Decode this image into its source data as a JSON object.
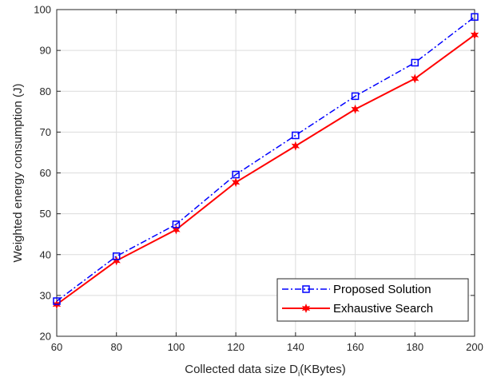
{
  "chart_data": {
    "type": "line",
    "title": "",
    "xlabel_main": "Collected data size D",
    "xlabel_sub": "i",
    "xlabel_unit": "(KBytes)",
    "ylabel": "Weighted energy consumption (J)",
    "xlim": [
      60,
      200
    ],
    "ylim": [
      20,
      100
    ],
    "xticks": [
      60,
      80,
      100,
      120,
      140,
      160,
      180,
      200
    ],
    "yticks": [
      20,
      30,
      40,
      50,
      60,
      70,
      80,
      90,
      100
    ],
    "grid": true,
    "legend_position": "bottom-right",
    "x": [
      60,
      80,
      100,
      120,
      140,
      160,
      180,
      200
    ],
    "series": [
      {
        "name": "Proposed Solution",
        "values": [
          28.6,
          39.6,
          47.4,
          59.6,
          69.2,
          78.8,
          87.0,
          98.2
        ],
        "color": "#0000ff",
        "line_style": "dash-dot",
        "marker": "square"
      },
      {
        "name": "Exhaustive Search",
        "values": [
          27.8,
          38.5,
          46.1,
          57.7,
          66.6,
          75.6,
          83.1,
          93.8
        ],
        "color": "#ff0000",
        "line_style": "solid",
        "marker": "hexagram"
      }
    ]
  }
}
